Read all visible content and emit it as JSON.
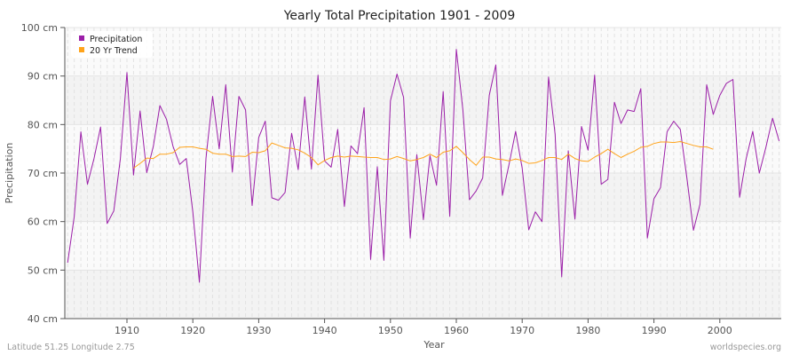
{
  "chart_data": {
    "type": "line",
    "title": "Yearly Total Precipitation 1901 - 2009",
    "xlabel": "Year",
    "ylabel": "Precipitation",
    "ylim": [
      40,
      100
    ],
    "xlim": [
      1901,
      2009
    ],
    "yticks": [
      40,
      50,
      60,
      70,
      80,
      90,
      100
    ],
    "ytick_labels": [
      "40 cm",
      "50 cm",
      "60 cm",
      "70 cm",
      "80 cm",
      "90 cm",
      "100 cm"
    ],
    "xticks": [
      1910,
      1920,
      1930,
      1940,
      1950,
      1960,
      1970,
      1980,
      1990,
      2000
    ],
    "xtick_labels": [
      "1910",
      "1920",
      "1930",
      "1940",
      "1950",
      "1960",
      "1970",
      "1980",
      "1990",
      "2000"
    ],
    "grid": true,
    "legend_position": "top-left",
    "series": [
      {
        "name": "Precipitation",
        "color": "#9b1fa8",
        "x_start": 1901,
        "values": [
          51.5,
          61,
          78.5,
          67.7,
          73,
          79.5,
          59.6,
          62.2,
          73,
          90.7,
          69.6,
          82.8,
          70.1,
          75.5,
          83.9,
          81.1,
          75.5,
          71.8,
          73,
          62,
          47.5,
          73,
          85.8,
          75,
          88.2,
          70.2,
          85.8,
          83,
          63.3,
          77.3,
          80.7,
          64.9,
          64.4,
          66,
          78.2,
          70.7,
          85.7,
          70.8,
          90.2,
          72.5,
          71.2,
          79,
          63.1,
          75.6,
          74,
          83.5,
          52.2,
          71.3,
          52,
          84.9,
          90.4,
          85.6,
          56.6,
          73.8,
          60.4,
          73.6,
          67.5,
          86.8,
          61.1,
          95.5,
          83,
          64.5,
          66.3,
          69,
          86,
          92.3,
          65.4,
          71.8,
          78.6,
          71,
          58.3,
          62,
          60,
          89.8,
          78,
          48.6,
          74.6,
          60.5,
          79.6,
          74.7,
          90.2,
          67.7,
          68.7,
          84.6,
          80.2,
          83,
          82.7,
          87.4,
          56.6,
          64.7,
          67,
          78.5,
          80.7,
          79,
          69,
          58.2,
          63.6,
          88.2,
          82.1,
          86,
          88.5,
          89.3,
          65,
          73,
          78.6,
          70,
          75.3,
          81.3,
          76.6
        ]
      },
      {
        "name": "20 Yr Trend",
        "color": "#ffa31a",
        "x_start": 1911,
        "values": [
          71,
          72,
          73.1,
          73,
          73.9,
          73.9,
          74.2,
          75.3,
          75.4,
          75.4,
          75.1,
          74.9,
          74.1,
          73.9,
          73.9,
          73.4,
          73.5,
          73.4,
          74.3,
          74.2,
          74.6,
          76.2,
          75.7,
          75.2,
          75.1,
          74.8,
          74.1,
          73.2,
          71.7,
          72.6,
          73.2,
          73.5,
          73.3,
          73.5,
          73.4,
          73.3,
          73.2,
          73.2,
          72.8,
          72.9,
          73.4,
          73,
          72.5,
          72.8,
          73.2,
          73.9,
          73.2,
          74.3,
          74.6,
          75.5,
          74.2,
          72.8,
          71.6,
          73.3,
          73.3,
          72.9,
          72.8,
          72.5,
          72.9,
          72.6,
          72,
          72.1,
          72.6,
          73.2,
          73.2,
          72.8,
          73.9,
          73,
          72.5,
          72.4,
          73.3,
          74,
          74.9,
          74,
          73.2,
          73.9,
          74.5,
          75.3,
          75.5,
          76.1,
          76.4,
          76.4,
          76.3,
          76.5,
          76.1,
          75.7,
          75.4,
          75.4,
          74.9
        ]
      }
    ]
  },
  "footer": {
    "location": "Latitude 51.25 Longitude 2.75",
    "source": "worldspecies.org"
  }
}
